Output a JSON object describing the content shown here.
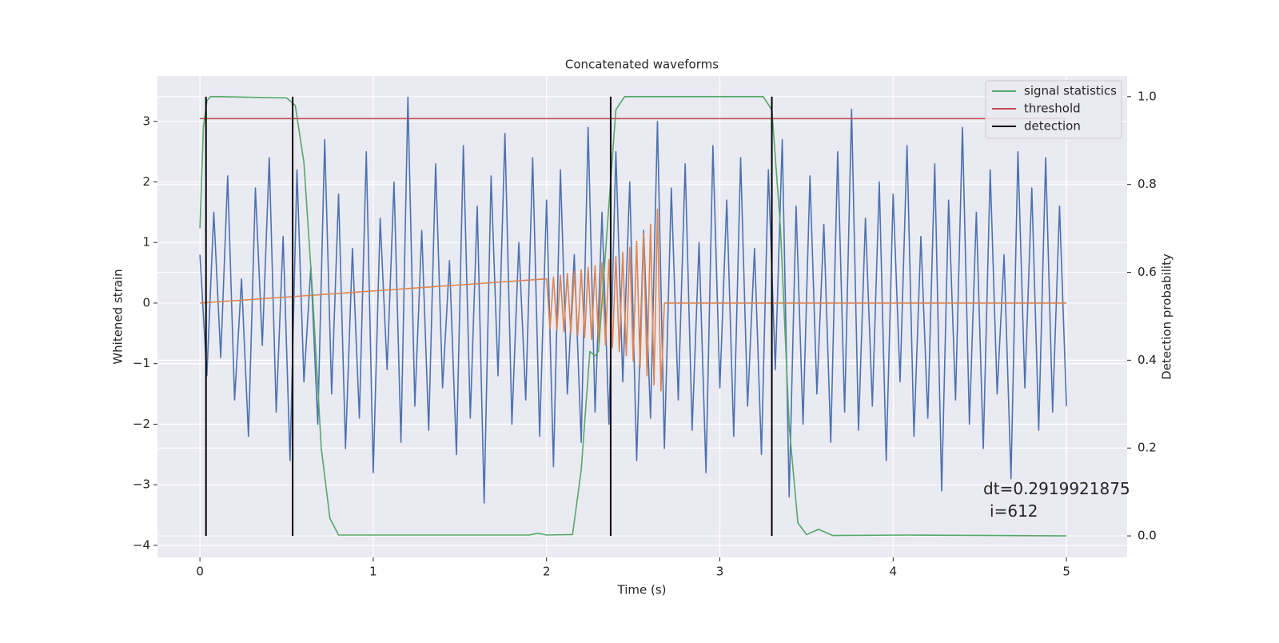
{
  "chart_data": {
    "type": "line",
    "title": "Concatenated waveforms",
    "xlabel": "Time (s)",
    "ylabel": "Whitened strain",
    "y2label": "Detection probability",
    "xlim": [
      -0.245,
      5.35
    ],
    "ylim": [
      -4.2,
      3.75
    ],
    "y2lim": [
      -0.049,
      1.047
    ],
    "xticks": [
      0,
      1,
      2,
      3,
      4,
      5
    ],
    "yticks": [
      {
        "value": -4,
        "label": "−4"
      },
      {
        "value": -3,
        "label": "−3"
      },
      {
        "value": -2,
        "label": "−2"
      },
      {
        "value": -1,
        "label": "−1"
      },
      0,
      1,
      2,
      3
    ],
    "y2ticks": [
      {
        "value": 0,
        "label": "0.0"
      },
      {
        "value": 0.2,
        "label": "0.2"
      },
      {
        "value": 0.4,
        "label": "0.4"
      },
      {
        "value": 0.6,
        "label": "0.6"
      },
      {
        "value": 0.8,
        "label": "0.8"
      },
      {
        "value": 1,
        "label": "1.0"
      }
    ],
    "grid": true,
    "legend": "upper right",
    "series": [
      {
        "color": "#4c72b0",
        "x": [
          0,
          0.04,
          0.08,
          0.12,
          0.16,
          0.2,
          0.24,
          0.28,
          0.32,
          0.36,
          0.4,
          0.44,
          0.48,
          0.52,
          0.56,
          0.6,
          0.64,
          0.68,
          0.72,
          0.76,
          0.8,
          0.84,
          0.88,
          0.92,
          0.96,
          1,
          1.04,
          1.08,
          1.12,
          1.16,
          1.2,
          1.24,
          1.28,
          1.32,
          1.36,
          1.4,
          1.44,
          1.48,
          1.52,
          1.56,
          1.6,
          1.64,
          1.68,
          1.72,
          1.76,
          1.8,
          1.84,
          1.88,
          1.92,
          1.96,
          2,
          2.04,
          2.08,
          2.12,
          2.16,
          2.2,
          2.24,
          2.28,
          2.32,
          2.36,
          2.4,
          2.44,
          2.48,
          2.52,
          2.56,
          2.6,
          2.64,
          2.68,
          2.72,
          2.76,
          2.8,
          2.84,
          2.88,
          2.92,
          2.96,
          3,
          3.04,
          3.08,
          3.12,
          3.16,
          3.2,
          3.24,
          3.28,
          3.32,
          3.36,
          3.4,
          3.44,
          3.48,
          3.52,
          3.56,
          3.6,
          3.64,
          3.68,
          3.72,
          3.76,
          3.8,
          3.84,
          3.88,
          3.92,
          3.96,
          4,
          4.04,
          4.08,
          4.12,
          4.16,
          4.2,
          4.24,
          4.28,
          4.32,
          4.36,
          4.4,
          4.44,
          4.48,
          4.52,
          4.56,
          4.6,
          4.64,
          4.68,
          4.72,
          4.76,
          4.8,
          4.84,
          4.88,
          4.92,
          4.96,
          5
        ],
        "values": [
          0.8,
          -1.2,
          1.5,
          -0.9,
          2.1,
          -1.6,
          0.4,
          -2.2,
          1.9,
          -0.7,
          2.4,
          -1.8,
          1.1,
          -2.6,
          2.2,
          -1.3,
          0.6,
          -2.0,
          2.7,
          -1.5,
          1.8,
          -2.4,
          0.9,
          -1.9,
          2.5,
          -2.8,
          1.4,
          -1.1,
          2.0,
          -2.3,
          3.4,
          -1.7,
          1.2,
          -2.1,
          2.3,
          -1.4,
          0.7,
          -2.5,
          2.6,
          -1.9,
          1.6,
          -3.3,
          2.1,
          -1.2,
          2.8,
          -2.0,
          1.0,
          -1.6,
          2.4,
          -2.2,
          1.7,
          -2.7,
          2.2,
          -1.5,
          0.8,
          -2.3,
          2.9,
          -1.8,
          1.5,
          -2.0,
          2.5,
          -1.3,
          2.0,
          -2.6,
          1.2,
          -1.9,
          3.0,
          -2.4,
          1.9,
          -1.6,
          2.3,
          -2.1,
          1.0,
          -2.8,
          2.6,
          -1.4,
          1.7,
          -2.2,
          2.4,
          -1.7,
          0.9,
          -2.5,
          2.2,
          -1.1,
          2.7,
          -3.2,
          1.6,
          -2.0,
          2.1,
          -1.5,
          1.3,
          -2.3,
          2.5,
          -1.8,
          3.2,
          -2.1,
          1.4,
          -1.7,
          2.0,
          -2.6,
          1.8,
          -1.3,
          2.6,
          -2.2,
          1.1,
          -1.9,
          2.3,
          -3.1,
          1.7,
          -1.6,
          2.9,
          -2.0,
          1.5,
          -2.4,
          2.2,
          -1.5,
          0.8,
          -2.9,
          2.5,
          -1.4,
          1.9,
          -2.1,
          2.4,
          -1.8,
          1.6,
          -1.7
        ]
      },
      {
        "color": "#dd8452",
        "x": [
          0,
          2,
          2.02,
          2.04,
          2.06,
          2.08,
          2.1,
          2.12,
          2.14,
          2.16,
          2.18,
          2.2,
          2.22,
          2.24,
          2.26,
          2.28,
          2.3,
          2.32,
          2.34,
          2.36,
          2.38,
          2.4,
          2.42,
          2.44,
          2.46,
          2.48,
          2.5,
          2.52,
          2.54,
          2.56,
          2.58,
          2.6,
          2.62,
          2.64,
          2.66,
          2.68,
          5
        ],
        "values": [
          0,
          0.4,
          -0.42,
          0.43,
          -0.44,
          0.46,
          -0.47,
          0.49,
          -0.5,
          0.52,
          -0.53,
          0.55,
          -0.57,
          0.59,
          -0.6,
          0.62,
          -0.64,
          0.67,
          -0.69,
          0.72,
          -0.74,
          0.77,
          -0.8,
          0.84,
          -0.87,
          0.92,
          -0.96,
          1.02,
          -1.07,
          1.15,
          -1.2,
          1.3,
          -1.35,
          1.55,
          -1.45,
          0,
          0
        ]
      },
      {
        "name": "signal statistics",
        "color": "#55a868",
        "axis": "y2",
        "x": [
          0,
          0.02,
          0.04,
          0.06,
          0.08,
          0.1,
          0.5,
          0.55,
          0.6,
          0.65,
          0.7,
          0.75,
          0.8,
          1.9,
          1.95,
          2,
          2.15,
          2.2,
          2.25,
          2.28,
          2.3,
          2.35,
          2.4,
          2.45,
          3.25,
          3.3,
          3.35,
          3.4,
          3.45,
          3.5,
          3.57,
          3.65,
          4.1,
          5
        ],
        "values": [
          0.7,
          0.93,
          0.99,
          1,
          1,
          1,
          0.997,
          0.98,
          0.85,
          0.55,
          0.2,
          0.04,
          0.002,
          0.002,
          0.006,
          0.002,
          0.003,
          0.15,
          0.42,
          0.41,
          0.42,
          0.7,
          0.97,
          1,
          1,
          0.97,
          0.7,
          0.25,
          0.03,
          0.003,
          0.015,
          0.001,
          0.002,
          0
        ]
      },
      {
        "name": "threshold",
        "color": "#c44e52",
        "axis": "y2",
        "x": [
          0,
          5
        ],
        "values": [
          0.95,
          0.95
        ]
      }
    ],
    "vlines": {
      "name": "detection",
      "color": "#000000",
      "axis": "y2",
      "x": [
        0.035,
        0.535,
        2.37,
        3.3
      ],
      "ymin": 0,
      "ymax": 1
    },
    "annotation": {
      "text": [
        "dt=0.2919921875",
        "i=612"
      ],
      "x": 4.52,
      "y": -3.1
    }
  }
}
